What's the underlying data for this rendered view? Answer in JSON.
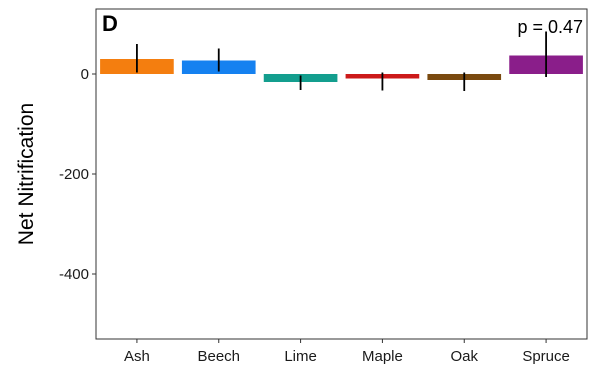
{
  "chart_data": {
    "type": "bar",
    "panel_label": "D",
    "annotation": "p = 0.47",
    "ylabel": "Net Nitrification",
    "xlabel": "",
    "categories": [
      "Ash",
      "Beech",
      "Lime",
      "Maple",
      "Oak",
      "Spruce"
    ],
    "values": [
      30,
      27,
      -16,
      -9,
      -12,
      37
    ],
    "error_low": [
      3,
      5,
      -32,
      -33,
      -34,
      -6
    ],
    "error_high": [
      60,
      51,
      -3,
      3,
      3,
      85
    ],
    "colors": [
      "#F47E0F",
      "#1581F0",
      "#139E8E",
      "#CC1A1A",
      "#7A4A0F",
      "#8A1E8A"
    ],
    "ylim": [
      -530,
      130
    ],
    "yticks": [
      0,
      -200,
      -400
    ],
    "ytick_labels": [
      "0",
      "-200",
      "-400"
    ],
    "grid": false
  }
}
